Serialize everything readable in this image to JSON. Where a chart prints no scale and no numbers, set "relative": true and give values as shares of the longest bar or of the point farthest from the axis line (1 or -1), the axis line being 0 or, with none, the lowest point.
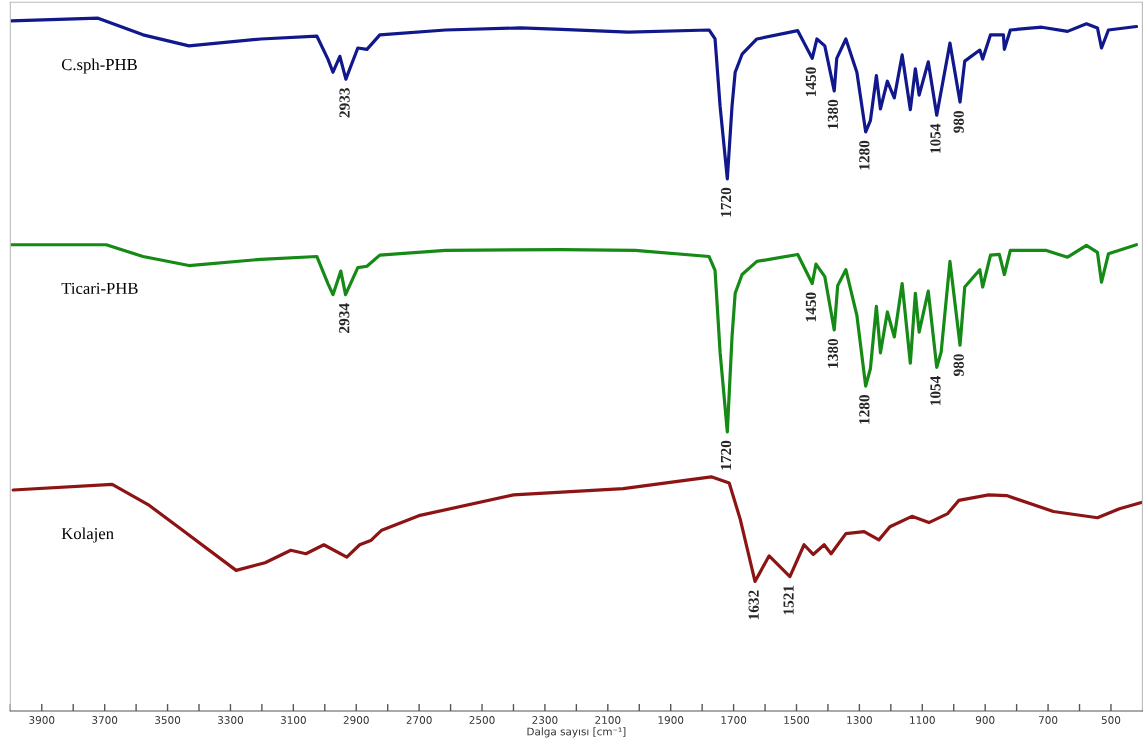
{
  "chart_data": {
    "type": "line",
    "relative": true,
    "xlabel": "Dalga sayısı [cm⁻¹]",
    "xlim": [
      4000,
      400
    ],
    "xticks": [
      {
        "value": 4000,
        "label": null
      },
      3900,
      {
        "value": 3800,
        "label": null
      },
      3700,
      {
        "value": 3600,
        "label": null
      },
      3500,
      {
        "value": 3400,
        "label": null
      },
      3300,
      {
        "value": 3200,
        "label": null
      },
      3100,
      {
        "value": 3000,
        "label": null
      },
      2900,
      {
        "value": 2800,
        "label": null
      },
      2700,
      {
        "value": 2600,
        "label": null
      },
      2500,
      {
        "value": 2400,
        "label": null
      },
      2300,
      {
        "value": 2200,
        "label": null
      },
      2100,
      {
        "value": 2000,
        "label": null
      },
      1900,
      {
        "value": 1800,
        "label": null
      },
      1700,
      {
        "value": 1600,
        "label": null
      },
      1500,
      {
        "value": 1400,
        "label": null
      },
      1300,
      {
        "value": 1200,
        "label": null
      },
      1100,
      {
        "value": 1000,
        "label": null
      },
      900,
      {
        "value": 800,
        "label": null
      },
      700,
      {
        "value": 600,
        "label": null
      },
      500
    ],
    "tick_labels": "x",
    "grid": false,
    "legend": false,
    "marker": "none",
    "line_style": "solid",
    "series": [
      {
        "name": "C.sph-PHB",
        "color": "#10188c",
        "x": [
          3997,
          3721,
          3578,
          3432,
          3203,
          3025,
          2990,
          2974,
          2952,
          2933,
          2895,
          2866,
          2825,
          2616,
          2378,
          2247,
          2035,
          1778,
          1759,
          1743,
          1720,
          1705,
          1695,
          1673,
          1626,
          1496,
          1450,
          1435,
          1410,
          1380,
          1372,
          1343,
          1308,
          1280,
          1265,
          1246,
          1233,
          1211,
          1189,
          1164,
          1138,
          1122,
          1110,
          1081,
          1054,
          1012,
          980,
          965,
          917,
          908,
          883,
          842,
          839,
          820,
          720,
          638,
          578,
          543,
          530,
          508,
          419
        ],
        "values": [
          0.996,
          1.0,
          0.976,
          0.96,
          0.97,
          0.974,
          0.941,
          0.922,
          0.945,
          0.912,
          0.957,
          0.955,
          0.976,
          0.983,
          0.986,
          0.984,
          0.98,
          0.983,
          0.97,
          0.873,
          0.768,
          0.873,
          0.922,
          0.948,
          0.97,
          0.982,
          0.942,
          0.97,
          0.96,
          0.895,
          0.942,
          0.97,
          0.922,
          0.836,
          0.852,
          0.917,
          0.869,
          0.909,
          0.885,
          0.947,
          0.868,
          0.927,
          0.889,
          0.937,
          0.86,
          0.964,
          0.879,
          0.938,
          0.954,
          0.941,
          0.976,
          0.976,
          0.955,
          0.983,
          0.987,
          0.981,
          0.992,
          0.986,
          0.957,
          0.983,
          0.988
        ]
      },
      {
        "name": "Ticari-PHB",
        "color": "#168a16",
        "x": [
          3997,
          3695,
          3578,
          3432,
          3203,
          3025,
          2990,
          2974,
          2949,
          2934,
          2895,
          2866,
          2825,
          2616,
          2247,
          2013,
          1778,
          1759,
          1743,
          1720,
          1705,
          1695,
          1673,
          1626,
          1496,
          1450,
          1438,
          1410,
          1380,
          1369,
          1343,
          1308,
          1280,
          1265,
          1246,
          1233,
          1211,
          1189,
          1164,
          1138,
          1122,
          1110,
          1081,
          1054,
          1040,
          1012,
          980,
          965,
          917,
          908,
          883,
          855,
          839,
          820,
          708,
          638,
          578,
          543,
          530,
          508,
          419
        ],
        "values": [
          0.673,
          0.673,
          0.656,
          0.643,
          0.652,
          0.656,
          0.617,
          0.601,
          0.635,
          0.601,
          0.64,
          0.642,
          0.658,
          0.665,
          0.666,
          0.665,
          0.656,
          0.636,
          0.518,
          0.403,
          0.54,
          0.603,
          0.63,
          0.649,
          0.659,
          0.617,
          0.645,
          0.627,
          0.55,
          0.614,
          0.637,
          0.571,
          0.469,
          0.494,
          0.584,
          0.517,
          0.576,
          0.54,
          0.617,
          0.502,
          0.603,
          0.547,
          0.606,
          0.496,
          0.518,
          0.649,
          0.528,
          0.612,
          0.637,
          0.612,
          0.658,
          0.659,
          0.63,
          0.665,
          0.665,
          0.655,
          0.672,
          0.662,
          0.619,
          0.66,
          0.673
        ]
      },
      {
        "name": "Kolajen",
        "color": "#8c1414",
        "x": [
          3991,
          3676,
          3562,
          3467,
          3282,
          3190,
          3108,
          3060,
          3003,
          2930,
          2889,
          2854,
          2819,
          2701,
          2400,
          2051,
          1771,
          1714,
          1679,
          1632,
          1587,
          1521,
          1476,
          1447,
          1412,
          1390,
          1343,
          1285,
          1238,
          1203,
          1133,
          1079,
          1019,
          984,
          889,
          832,
          683,
          543,
          473,
          403
        ],
        "values": [
          0.319,
          0.327,
          0.298,
          0.266,
          0.203,
          0.214,
          0.232,
          0.227,
          0.24,
          0.222,
          0.24,
          0.246,
          0.261,
          0.282,
          0.312,
          0.321,
          0.338,
          0.329,
          0.277,
          0.187,
          0.224,
          0.194,
          0.24,
          0.226,
          0.24,
          0.227,
          0.256,
          0.259,
          0.247,
          0.266,
          0.281,
          0.272,
          0.285,
          0.304,
          0.312,
          0.311,
          0.288,
          0.279,
          0.292,
          0.301
        ]
      }
    ],
    "annotations": [
      {
        "text": "2933",
        "x": 2933,
        "y": 0.912
      },
      {
        "text": "1720",
        "x": 1720,
        "y": 0.768
      },
      {
        "text": "1450",
        "x": 1450,
        "y": 0.942
      },
      {
        "text": "1380",
        "x": 1380,
        "y": 0.895
      },
      {
        "text": "1280",
        "x": 1280,
        "y": 0.836
      },
      {
        "text": "1054",
        "x": 1054,
        "y": 0.86
      },
      {
        "text": "980",
        "x": 980,
        "y": 0.879
      },
      {
        "text": "2934",
        "x": 2934,
        "y": 0.601
      },
      {
        "text": "1720",
        "x": 1720,
        "y": 0.403
      },
      {
        "text": "1450",
        "x": 1450,
        "y": 0.617
      },
      {
        "text": "1380",
        "x": 1380,
        "y": 0.55
      },
      {
        "text": "1280",
        "x": 1280,
        "y": 0.469
      },
      {
        "text": "1054",
        "x": 1054,
        "y": 0.496
      },
      {
        "text": "980",
        "x": 980,
        "y": 0.528
      },
      {
        "text": "1632",
        "x": 1632,
        "y": 0.187
      },
      {
        "text": "1521",
        "x": 1521,
        "y": 0.194
      }
    ]
  }
}
